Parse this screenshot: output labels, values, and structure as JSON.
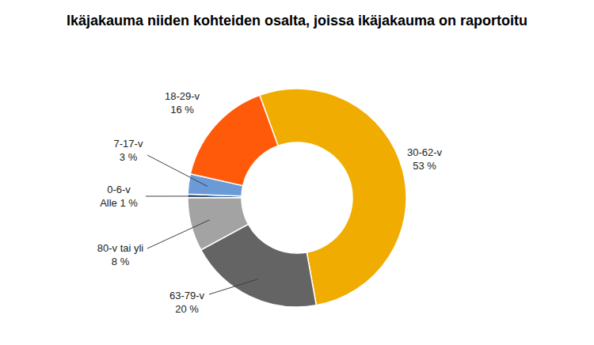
{
  "chart_data": {
    "type": "pie",
    "title": "Ikäjakauma niiden kohteiden osalta, joissa ikäjakauma on raportoitu",
    "categories": [
      "30-62-v",
      "63-79-v",
      "80-v tai yli",
      "0-6-v",
      "7-17-v",
      "18-29-v"
    ],
    "values": [
      53,
      20,
      8,
      0.5,
      3,
      16
    ],
    "value_labels": [
      "53 %",
      "20 %",
      "8 %",
      "Alle 1 %",
      "3 %",
      "16 %"
    ],
    "colors": [
      "#f0ac00",
      "#646464",
      "#a3a3a3",
      "#2e5f9e",
      "#6b9bd6",
      "#ff5a0a"
    ],
    "data_labels": true
  }
}
